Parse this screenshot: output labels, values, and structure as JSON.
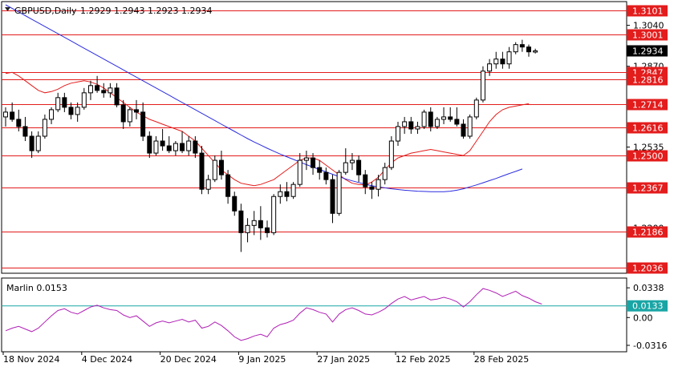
{
  "chart_data": [
    {
      "type": "candlestick",
      "title": "GBPUSD,Daily",
      "ohlc_header": "1.2929 1.2943 1.2923 1.2934",
      "ylim": [
        1.2015,
        1.3135
      ],
      "y_ticks": [
        "1.3040",
        "1.2870",
        "1.2535",
        "1.2200"
      ],
      "horizontal_levels": [
        {
          "value": 1.3101,
          "label": "1.3101"
        },
        {
          "value": 1.3001,
          "label": "1.3001"
        },
        {
          "value": 1.2847,
          "label": "1.2847"
        },
        {
          "value": 1.2816,
          "label": "1.2816"
        },
        {
          "value": 1.2714,
          "label": "1.2714"
        },
        {
          "value": 1.2616,
          "label": "1.2616"
        },
        {
          "value": 1.25,
          "label": "1.2500"
        },
        {
          "value": 1.2367,
          "label": "1.2367"
        },
        {
          "value": 1.2186,
          "label": "1.2186"
        },
        {
          "value": 1.2036,
          "label": "1.2036"
        }
      ],
      "current_price": {
        "value": 1.2934,
        "label": "1.2934"
      },
      "x_labels": [
        "18 Nov 2024",
        "4 Dec 2024",
        "20 Dec 2024",
        "9 Jan 2025",
        "27 Jan 2025",
        "12 Feb 2025",
        "28 Feb 2025"
      ],
      "x_label_index": [
        0,
        12,
        24,
        36,
        48,
        60,
        72
      ],
      "candles": [
        [
          1.266,
          1.27,
          1.262,
          1.268
        ],
        [
          1.268,
          1.272,
          1.264,
          1.265
        ],
        [
          1.265,
          1.269,
          1.26,
          1.262
        ],
        [
          1.262,
          1.266,
          1.256,
          1.258
        ],
        [
          1.258,
          1.26,
          1.249,
          1.252
        ],
        [
          1.252,
          1.26,
          1.251,
          1.258
        ],
        [
          1.258,
          1.267,
          1.257,
          1.265
        ],
        [
          1.265,
          1.27,
          1.263,
          1.269
        ],
        [
          1.269,
          1.276,
          1.268,
          1.274
        ],
        [
          1.274,
          1.276,
          1.268,
          1.27
        ],
        [
          1.27,
          1.272,
          1.265,
          1.267
        ],
        [
          1.267,
          1.272,
          1.264,
          1.27
        ],
        [
          1.27,
          1.278,
          1.269,
          1.276
        ],
        [
          1.276,
          1.281,
          1.273,
          1.279
        ],
        [
          1.279,
          1.283,
          1.276,
          1.277
        ],
        [
          1.277,
          1.28,
          1.274,
          1.276
        ],
        [
          1.276,
          1.28,
          1.274,
          1.278
        ],
        [
          1.278,
          1.28,
          1.27,
          1.271
        ],
        [
          1.271,
          1.273,
          1.261,
          1.264
        ],
        [
          1.264,
          1.27,
          1.262,
          1.269
        ],
        [
          1.269,
          1.273,
          1.265,
          1.268
        ],
        [
          1.268,
          1.272,
          1.256,
          1.258
        ],
        [
          1.258,
          1.26,
          1.249,
          1.251
        ],
        [
          1.251,
          1.258,
          1.25,
          1.256
        ],
        [
          1.256,
          1.261,
          1.252,
          1.254
        ],
        [
          1.254,
          1.258,
          1.251,
          1.252
        ],
        [
          1.252,
          1.256,
          1.25,
          1.255
        ],
        [
          1.255,
          1.26,
          1.251,
          1.252
        ],
        [
          1.252,
          1.258,
          1.25,
          1.256
        ],
        [
          1.256,
          1.258,
          1.249,
          1.251
        ],
        [
          1.251,
          1.254,
          1.234,
          1.236
        ],
        [
          1.236,
          1.242,
          1.234,
          1.24
        ],
        [
          1.24,
          1.25,
          1.239,
          1.248
        ],
        [
          1.248,
          1.252,
          1.24,
          1.242
        ],
        [
          1.242,
          1.244,
          1.23,
          1.233
        ],
        [
          1.233,
          1.235,
          1.225,
          1.227
        ],
        [
          1.227,
          1.23,
          1.21,
          1.218
        ],
        [
          1.218,
          1.224,
          1.214,
          1.221
        ],
        [
          1.221,
          1.227,
          1.217,
          1.223
        ],
        [
          1.223,
          1.229,
          1.215,
          1.22
        ],
        [
          1.22,
          1.223,
          1.216,
          1.218
        ],
        [
          1.218,
          1.234,
          1.217,
          1.233
        ],
        [
          1.233,
          1.238,
          1.23,
          1.235
        ],
        [
          1.235,
          1.239,
          1.231,
          1.233
        ],
        [
          1.233,
          1.239,
          1.232,
          1.238
        ],
        [
          1.238,
          1.251,
          1.237,
          1.248
        ],
        [
          1.248,
          1.252,
          1.244,
          1.249
        ],
        [
          1.249,
          1.251,
          1.242,
          1.245
        ],
        [
          1.245,
          1.248,
          1.24,
          1.243
        ],
        [
          1.243,
          1.245,
          1.238,
          1.24
        ],
        [
          1.24,
          1.242,
          1.222,
          1.226
        ],
        [
          1.226,
          1.244,
          1.225,
          1.243
        ],
        [
          1.243,
          1.253,
          1.242,
          1.247
        ],
        [
          1.247,
          1.251,
          1.244,
          1.248
        ],
        [
          1.248,
          1.25,
          1.239,
          1.242
        ],
        [
          1.242,
          1.244,
          1.234,
          1.237
        ],
        [
          1.237,
          1.239,
          1.232,
          1.236
        ],
        [
          1.236,
          1.242,
          1.233,
          1.24
        ],
        [
          1.24,
          1.247,
          1.238,
          1.245
        ],
        [
          1.245,
          1.258,
          1.244,
          1.256
        ],
        [
          1.256,
          1.264,
          1.254,
          1.262
        ],
        [
          1.262,
          1.266,
          1.259,
          1.264
        ],
        [
          1.264,
          1.266,
          1.259,
          1.261
        ],
        [
          1.261,
          1.264,
          1.259,
          1.262
        ],
        [
          1.262,
          1.269,
          1.261,
          1.268
        ],
        [
          1.268,
          1.27,
          1.26,
          1.262
        ],
        [
          1.262,
          1.266,
          1.261,
          1.265
        ],
        [
          1.265,
          1.27,
          1.263,
          1.266
        ],
        [
          1.266,
          1.27,
          1.264,
          1.265
        ],
        [
          1.265,
          1.27,
          1.262,
          1.263
        ],
        [
          1.263,
          1.265,
          1.257,
          1.258
        ],
        [
          1.258,
          1.267,
          1.257,
          1.266
        ],
        [
          1.266,
          1.274,
          1.265,
          1.273
        ],
        [
          1.273,
          1.287,
          1.272,
          1.285
        ],
        [
          1.285,
          1.29,
          1.283,
          1.288
        ],
        [
          1.288,
          1.293,
          1.286,
          1.29
        ],
        [
          1.29,
          1.293,
          1.286,
          1.288
        ],
        [
          1.288,
          1.295,
          1.286,
          1.293
        ],
        [
          1.293,
          1.297,
          1.292,
          1.296
        ],
        [
          1.296,
          1.298,
          1.293,
          1.295
        ],
        [
          1.295,
          1.296,
          1.291,
          1.293
        ],
        [
          1.2929,
          1.2943,
          1.2923,
          1.2934
        ]
      ],
      "series": [
        {
          "name": "",
          "color": "#e31c1c",
          "values": [
            1.284,
            1.2845,
            1.283,
            1.281,
            1.279,
            1.277,
            1.276,
            1.2765,
            1.2775,
            1.279,
            1.28,
            1.2805,
            1.281,
            1.2805,
            1.2795,
            1.278,
            1.276,
            1.274,
            1.272,
            1.27,
            1.268,
            1.2665,
            1.265,
            1.264,
            1.263,
            1.262,
            1.261,
            1.26,
            1.258,
            1.256,
            1.253,
            1.25,
            1.247,
            1.244,
            1.242,
            1.24,
            1.2385,
            1.238,
            1.2375,
            1.238,
            1.239,
            1.24,
            1.242,
            1.244,
            1.246,
            1.248,
            1.249,
            1.249,
            1.248,
            1.246,
            1.244,
            1.242,
            1.24,
            1.2385,
            1.238,
            1.2378,
            1.239,
            1.241,
            1.244,
            1.247,
            1.249,
            1.25,
            1.251,
            1.2515,
            1.252,
            1.2525,
            1.252,
            1.2515,
            1.251,
            1.2505,
            1.25,
            1.252,
            1.256,
            1.26,
            1.264,
            1.267,
            1.269,
            1.27,
            1.2705,
            1.271,
            1.2715
          ]
        },
        {
          "name": "",
          "color": "#2c2ce0",
          "values": [
            1.3125,
            1.311,
            1.3095,
            1.308,
            1.3065,
            1.305,
            1.3035,
            1.302,
            1.3005,
            1.299,
            1.2975,
            1.296,
            1.2945,
            1.293,
            1.2915,
            1.29,
            1.2885,
            1.287,
            1.2855,
            1.284,
            1.2825,
            1.281,
            1.2795,
            1.278,
            1.2765,
            1.275,
            1.2735,
            1.272,
            1.2705,
            1.269,
            1.2675,
            1.266,
            1.2645,
            1.263,
            1.2615,
            1.26,
            1.2585,
            1.257,
            1.2556,
            1.2543,
            1.253,
            1.2518,
            1.2506,
            1.2495,
            1.2484,
            1.2473,
            1.2462,
            1.2452,
            1.2442,
            1.2432,
            1.2422,
            1.2412,
            1.2403,
            1.2395,
            1.2388,
            1.2381,
            1.2375,
            1.237,
            1.2366,
            1.2362,
            1.2359,
            1.2356,
            1.2354,
            1.2352,
            1.2351,
            1.235,
            1.235,
            1.235,
            1.2352,
            1.2356,
            1.2362,
            1.237,
            1.2378,
            1.2387,
            1.2396,
            1.2405,
            1.2415,
            1.2425,
            1.2434,
            1.2444
          ]
        }
      ]
    },
    {
      "type": "line",
      "title": "Marlin 0.0153",
      "ylim": [
        -0.038,
        0.044
      ],
      "y_ticks": [
        "0.0338",
        "0.00",
        "-0.0316"
      ],
      "level_line": {
        "value": 0.0133,
        "label": "0.0133",
        "color": "#1aa5a5"
      },
      "series": [
        {
          "name": "",
          "color": "#b01fb5",
          "values": [
            -0.015,
            -0.012,
            -0.01,
            -0.013,
            -0.016,
            -0.012,
            -0.005,
            0.002,
            0.008,
            0.01,
            0.006,
            0.004,
            0.008,
            0.012,
            0.014,
            0.011,
            0.009,
            0.008,
            0.003,
            0.0,
            0.002,
            -0.004,
            -0.01,
            -0.006,
            -0.004,
            -0.006,
            -0.004,
            -0.002,
            -0.005,
            -0.003,
            -0.012,
            -0.01,
            -0.005,
            -0.009,
            -0.015,
            -0.022,
            -0.026,
            -0.024,
            -0.021,
            -0.019,
            -0.022,
            -0.012,
            -0.008,
            -0.006,
            -0.003,
            0.005,
            0.011,
            0.009,
            0.006,
            0.004,
            -0.005,
            0.004,
            0.009,
            0.011,
            0.008,
            0.004,
            0.003,
            0.006,
            0.01,
            0.016,
            0.021,
            0.024,
            0.02,
            0.022,
            0.024,
            0.02,
            0.021,
            0.023,
            0.021,
            0.018,
            0.012,
            0.018,
            0.026,
            0.033,
            0.031,
            0.028,
            0.024,
            0.027,
            0.03,
            0.025,
            0.022,
            0.018,
            0.0153
          ]
        }
      ]
    }
  ]
}
